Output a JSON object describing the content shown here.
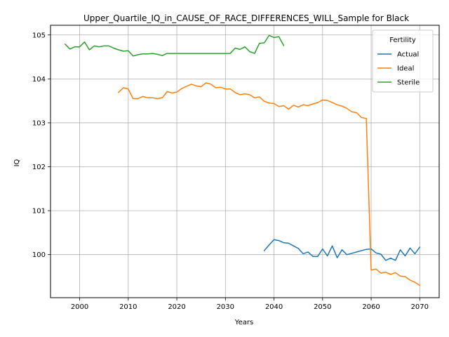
{
  "chart_data": {
    "type": "line",
    "title": "Upper_Quartile_IQ_in_CAUSE_OF_RACE_DIFFERENCES_WILL_Sample for Black",
    "xlabel": "Years",
    "ylabel": "IQ",
    "xlim": [
      1994,
      2074
    ],
    "ylim": [
      99.02,
      105.22
    ],
    "x_ticks": [
      2000,
      2010,
      2020,
      2030,
      2040,
      2050,
      2060,
      2070
    ],
    "y_ticks": [
      100,
      101,
      102,
      103,
      104,
      105
    ],
    "grid": true,
    "legend": {
      "title": "Fertility",
      "position": "top-right"
    },
    "series": [
      {
        "name": "Actual",
        "color": "#1f77b4",
        "x": [
          2038,
          2039,
          2040,
          2041,
          2042,
          2043,
          2044,
          2045,
          2046,
          2047,
          2048,
          2049,
          2050,
          2051,
          2052,
          2053,
          2054,
          2055,
          2056,
          2057,
          2058,
          2059,
          2060,
          2061,
          2062,
          2063,
          2064,
          2065,
          2066,
          2067,
          2068,
          2069,
          2070
        ],
        "y": [
          100.09,
          100.22,
          100.34,
          100.32,
          100.27,
          100.26,
          100.2,
          100.14,
          100.02,
          100.06,
          99.96,
          99.96,
          100.13,
          99.97,
          100.2,
          99.93,
          100.11,
          100.0,
          100.03,
          100.06,
          100.09,
          100.12,
          100.13,
          100.04,
          100.01,
          99.87,
          99.92,
          99.87,
          100.11,
          99.97,
          100.15,
          100.02,
          100.17
        ]
      },
      {
        "name": "Ideal",
        "color": "#ff7f0e",
        "x": [
          2008,
          2009,
          2010,
          2011,
          2012,
          2013,
          2014,
          2015,
          2016,
          2017,
          2018,
          2019,
          2020,
          2021,
          2022,
          2023,
          2024,
          2025,
          2026,
          2027,
          2028,
          2029,
          2030,
          2031,
          2032,
          2033,
          2034,
          2035,
          2036,
          2037,
          2038,
          2039,
          2040,
          2041,
          2042,
          2043,
          2044,
          2045,
          2046,
          2047,
          2048,
          2049,
          2050,
          2051,
          2052,
          2053,
          2054,
          2055,
          2056,
          2057,
          2058,
          2059,
          2060,
          2061,
          2062,
          2063,
          2064,
          2065,
          2066,
          2067,
          2068,
          2069,
          2070
        ],
        "y": [
          103.69,
          103.8,
          103.77,
          103.55,
          103.55,
          103.6,
          103.57,
          103.57,
          103.55,
          103.57,
          103.71,
          103.68,
          103.7,
          103.78,
          103.83,
          103.88,
          103.84,
          103.82,
          103.91,
          103.88,
          103.8,
          103.81,
          103.77,
          103.77,
          103.69,
          103.64,
          103.66,
          103.64,
          103.57,
          103.59,
          103.49,
          103.45,
          103.44,
          103.37,
          103.39,
          103.31,
          103.4,
          103.36,
          103.41,
          103.39,
          103.43,
          103.46,
          103.52,
          103.51,
          103.46,
          103.41,
          103.38,
          103.33,
          103.25,
          103.23,
          103.12,
          103.1,
          99.65,
          99.67,
          99.58,
          99.6,
          99.55,
          99.59,
          99.51,
          99.5,
          99.42,
          99.37,
          99.3
        ]
      },
      {
        "name": "Sterile",
        "color": "#2ca02c",
        "x": [
          1997,
          1998,
          1999,
          2000,
          2001,
          2002,
          2003,
          2004,
          2005,
          2006,
          2007,
          2008,
          2009,
          2010,
          2011,
          2012,
          2013,
          2014,
          2015,
          2016,
          2017,
          2018,
          2019,
          2020,
          2021,
          2022,
          2023,
          2024,
          2025,
          2026,
          2027,
          2028,
          2029,
          2030,
          2031,
          2032,
          2033,
          2034,
          2035,
          2036,
          2037,
          2038,
          2039,
          2040,
          2041,
          2042
        ],
        "y": [
          104.79,
          104.68,
          104.73,
          104.73,
          104.84,
          104.66,
          104.75,
          104.73,
          104.75,
          104.75,
          104.7,
          104.66,
          104.63,
          104.64,
          104.52,
          104.55,
          104.57,
          104.57,
          104.58,
          104.56,
          104.53,
          104.58,
          104.58,
          104.58,
          104.58,
          104.58,
          104.58,
          104.58,
          104.58,
          104.58,
          104.58,
          104.58,
          104.58,
          104.58,
          104.58,
          104.7,
          104.67,
          104.73,
          104.62,
          104.58,
          104.81,
          104.82,
          104.99,
          104.94,
          104.96,
          104.76
        ]
      }
    ]
  }
}
